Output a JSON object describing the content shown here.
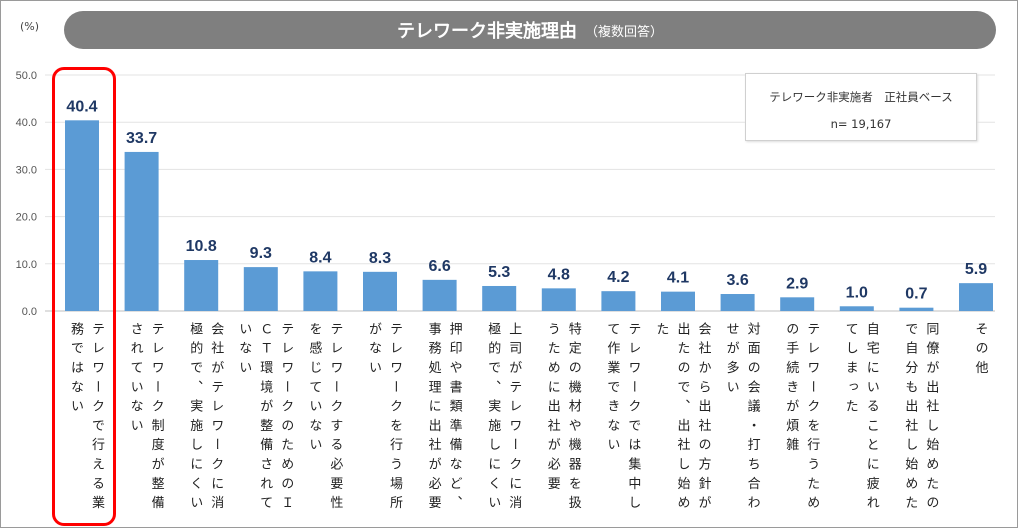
{
  "chart_data": {
    "type": "bar",
    "title": "テレワーク非実施理由",
    "subtitle": "（複数回答）",
    "ylabel": "(%)",
    "ylim": [
      0,
      50
    ],
    "yticks": [
      "0.0",
      "10.0",
      "20.0",
      "30.0",
      "40.0",
      "50.0"
    ],
    "grid": true,
    "bar_color": "#5b9bd5",
    "value_label_color": "#1f3864",
    "highlight_color": "#ff0000",
    "highlighted_category_index": 0,
    "categories": [
      "テレワークで行える業務ではない",
      "テレワーク制度が整備されていない",
      "会社がテレワークに消極的で、実施しにくい",
      "テレワークのためのＩＣＴ環境が整備されていない",
      "テレワークする必要性を感じていない",
      "テレワークを行う場所がない",
      "押印や書類準備など、事務処理に出社が必要",
      "上司がテレワークに消極的で、実施しにくい",
      "特定の機材や機器を扱うために出社が必要",
      "テレワークでは集中して作業できない",
      "会社から出社の方針が出たので、出社し始めた",
      "対面の会議・打ち合わせが多い",
      "テレワークを行うための手続きが煩雑",
      "自宅にいることに疲れてしまった",
      "同僚が出社し始めたので自分も出社し始めた",
      "その他"
    ],
    "values": [
      40.4,
      33.7,
      10.8,
      9.3,
      8.4,
      8.3,
      6.6,
      5.3,
      4.8,
      4.2,
      4.1,
      3.6,
      2.9,
      1.0,
      0.7,
      5.9
    ],
    "value_labels": [
      "40.4",
      "33.7",
      "10.8",
      "9.3",
      "8.4",
      "8.3",
      "6.6",
      "5.3",
      "4.8",
      "4.2",
      "4.1",
      "3.6",
      "2.9",
      "1.0",
      "0.7",
      "5.9"
    ],
    "legend": {
      "base": "テレワーク非実施者　正社員ベース",
      "n": "n= 19,167"
    }
  }
}
